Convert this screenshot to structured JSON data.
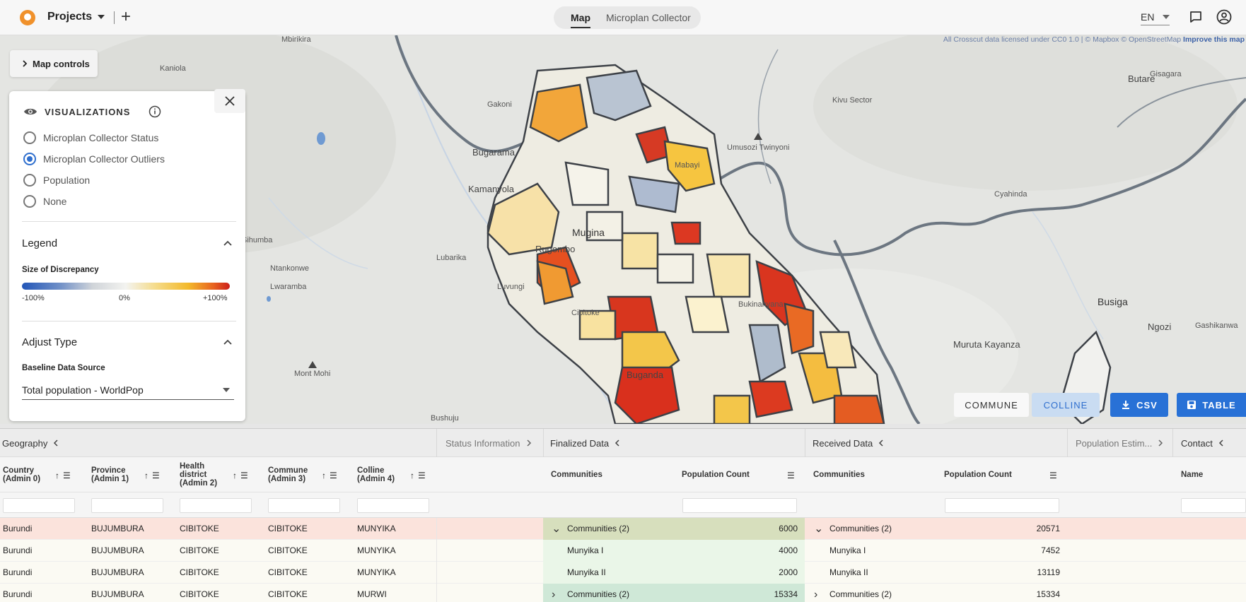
{
  "topbar": {
    "projects_label": "Projects",
    "tabs": [
      {
        "label": "Map",
        "active": true
      },
      {
        "label": "Microplan Collector",
        "active": false
      }
    ],
    "language": "EN",
    "icons": [
      "add-icon",
      "chat-icon",
      "account-icon"
    ]
  },
  "map": {
    "attribution_text": "All Crosscut data licensed under CC0 1.0 | © Mapbox © OpenStreetMap ",
    "attribution_link": "Improve this map",
    "controls_label": "Map controls",
    "place_labels": {
      "mbirikira": "Mbirikira",
      "kaniola": "Kaniola",
      "gakoni": "Gakoni",
      "bugarama": "Bugarama",
      "kamanyola": "Kamanyola",
      "sihumba": "Sihumba",
      "ntankonwe": "Ntankonwe",
      "lubarika": "Lubarika",
      "lwaramba": "Lwaramba",
      "luvungi": "Luvungi",
      "mont_mohi": "Mont Mohi",
      "bushuju": "Bushuju",
      "mugina": "Mugina",
      "rugombo": "Rugombo",
      "cibitoke": "Cibitoke",
      "buganda": "Buganda",
      "mabayi": "Mabayi",
      "umusozi": "Umusozi Twinyoni",
      "kivu": "Kivu Sector",
      "butare": "Butare",
      "gisagara": "Gisagara",
      "cyahinda": "Cyahinda",
      "bukinanyana": "Bukinanyana",
      "busiga": "Busiga",
      "ngozi": "Ngozi",
      "gashikanwa": "Gashikanwa",
      "muruta": "Muruta Kayanza"
    },
    "level_buttons": {
      "commune": "COMMUNE",
      "colline": "COLLINE"
    },
    "actions": {
      "csv": "CSV",
      "table": "TABLE"
    }
  },
  "visualizations": {
    "title": "VISUALIZATIONS",
    "options": [
      {
        "label": "Microplan Collector Status",
        "selected": false
      },
      {
        "label": "Microplan Collector Outliers",
        "selected": true
      },
      {
        "label": "Population",
        "selected": false
      },
      {
        "label": "None",
        "selected": false
      }
    ],
    "legend_title": "Legend",
    "legend_subtitle": "Size of Discrepancy",
    "legend_min": "-100%",
    "legend_mid": "0%",
    "legend_max": "+100%",
    "adjust_title": "Adjust Type",
    "baseline_label": "Baseline Data Source",
    "baseline_value": "Total population - WorldPop",
    "colors": {
      "selected_radio": "#2f6fce",
      "scale_low": "#2256b8",
      "scale_mid": "#f3f3f0",
      "scale_high": "#cc1f1a"
    }
  },
  "grid": {
    "groups": {
      "geography": "Geography",
      "status": "Status Information",
      "finalized": "Finalized Data",
      "received": "Received Data",
      "population": "Population Estim...",
      "contact": "Contact"
    },
    "headers": {
      "country": "Country (Admin 0)",
      "province": "Province (Admin 1)",
      "health": "Health district (Admin 2)",
      "commune": "Commune (Admin 3)",
      "colline": "Colline (Admin 4)",
      "fin_comm": "Communities",
      "fin_pop": "Population Count",
      "rec_comm": "Communities",
      "rec_pop": "Population Count",
      "name": "Name"
    },
    "rows": [
      {
        "country": "Burundi",
        "province": "BUJUMBURA",
        "health": "CIBITOKE",
        "commune": "CIBITOKE",
        "colline": "MUNYIKA",
        "fin_comm": "Communities (2)",
        "fin_pop": "6000",
        "rec_comm": "Communities (2)",
        "rec_pop": "20571",
        "fin_expander": "down",
        "rec_expander": "down"
      },
      {
        "country": "Burundi",
        "province": "BUJUMBURA",
        "health": "CIBITOKE",
        "commune": "CIBITOKE",
        "colline": "MUNYIKA",
        "fin_comm": "Munyika I",
        "fin_pop": "4000",
        "rec_comm": "Munyika I",
        "rec_pop": "7452",
        "fin_expander": "",
        "rec_expander": ""
      },
      {
        "country": "Burundi",
        "province": "BUJUMBURA",
        "health": "CIBITOKE",
        "commune": "CIBITOKE",
        "colline": "MUNYIKA",
        "fin_comm": "Munyika II",
        "fin_pop": "2000",
        "rec_comm": "Munyika II",
        "rec_pop": "13119",
        "fin_expander": "",
        "rec_expander": ""
      },
      {
        "country": "Burundi",
        "province": "BUJUMBURA",
        "health": "CIBITOKE",
        "commune": "CIBITOKE",
        "colline": "MURWI",
        "fin_comm": "Communities (2)",
        "fin_pop": "15334",
        "rec_comm": "Communities (2)",
        "rec_pop": "15334",
        "fin_expander": "right",
        "rec_expander": "right"
      }
    ]
  }
}
